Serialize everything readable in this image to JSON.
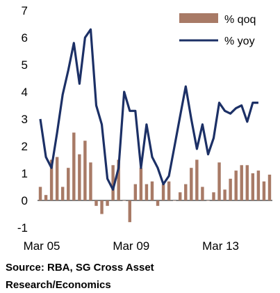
{
  "chart_data": {
    "type": "bar+line",
    "title": "",
    "xlabel": "",
    "ylabel": "",
    "ylim": [
      -1,
      7
    ],
    "yticks": [
      "-1",
      "0",
      "1",
      "2",
      "3",
      "4",
      "5",
      "6",
      "7"
    ],
    "xtick_labels": [
      "Mar 05",
      "Mar 09",
      "Mar 13"
    ],
    "xtick_periods": [
      "2005Q1",
      "2009Q1",
      "2013Q1"
    ],
    "periods": [
      "2005Q1",
      "2005Q2",
      "2005Q3",
      "2005Q4",
      "2006Q1",
      "2006Q2",
      "2006Q3",
      "2006Q4",
      "2007Q1",
      "2007Q2",
      "2007Q3",
      "2007Q4",
      "2008Q1",
      "2008Q2",
      "2008Q3",
      "2008Q4",
      "2009Q1",
      "2009Q2",
      "2009Q3",
      "2009Q4",
      "2010Q1",
      "2010Q2",
      "2010Q3",
      "2010Q4",
      "2011Q1",
      "2011Q2",
      "2011Q3",
      "2011Q4",
      "2012Q1",
      "2012Q2",
      "2012Q3",
      "2012Q4",
      "2013Q1",
      "2013Q2",
      "2013Q3",
      "2013Q4",
      "2014Q1",
      "2014Q2",
      "2014Q3",
      "2014Q4",
      "2015Q1",
      "2015Q2"
    ],
    "series": [
      {
        "name": "% qoq",
        "type": "bar",
        "color": "#a87a66",
        "values": [
          0.5,
          0.2,
          1.5,
          1.6,
          0.5,
          1.2,
          2.5,
          1.7,
          2.2,
          1.4,
          -0.2,
          -0.5,
          -0.2,
          1.3,
          1.5,
          0.0,
          -0.8,
          0.6,
          1.2,
          0.6,
          0.7,
          -0.2,
          0.6,
          0.7,
          0.0,
          0.3,
          0.6,
          1.2,
          1.5,
          0.5,
          0.0,
          0.3,
          1.4,
          0.4,
          0.8,
          1.1,
          1.3,
          1.3,
          1.0,
          1.1,
          0.7,
          0.95
        ]
      },
      {
        "name": "% yoy",
        "type": "line",
        "color": "#1c3066",
        "values": [
          3.0,
          1.6,
          1.2,
          2.5,
          3.9,
          4.8,
          5.8,
          4.3,
          6.0,
          6.3,
          3.5,
          2.8,
          0.8,
          0.4,
          1.2,
          4.0,
          3.3,
          3.3,
          1.2,
          2.8,
          1.6,
          1.2,
          0.6,
          0.9,
          2.0,
          3.1,
          4.2,
          3.0,
          1.9,
          2.8,
          1.7,
          2.3,
          3.6,
          3.3,
          3.2,
          3.4,
          3.5,
          2.9,
          3.6,
          3.6
        ]
      }
    ],
    "legend": {
      "placement": "top-right"
    }
  },
  "source": {
    "line1": "Source: RBA, SG Cross Asset",
    "line2": "Research/Economics"
  }
}
